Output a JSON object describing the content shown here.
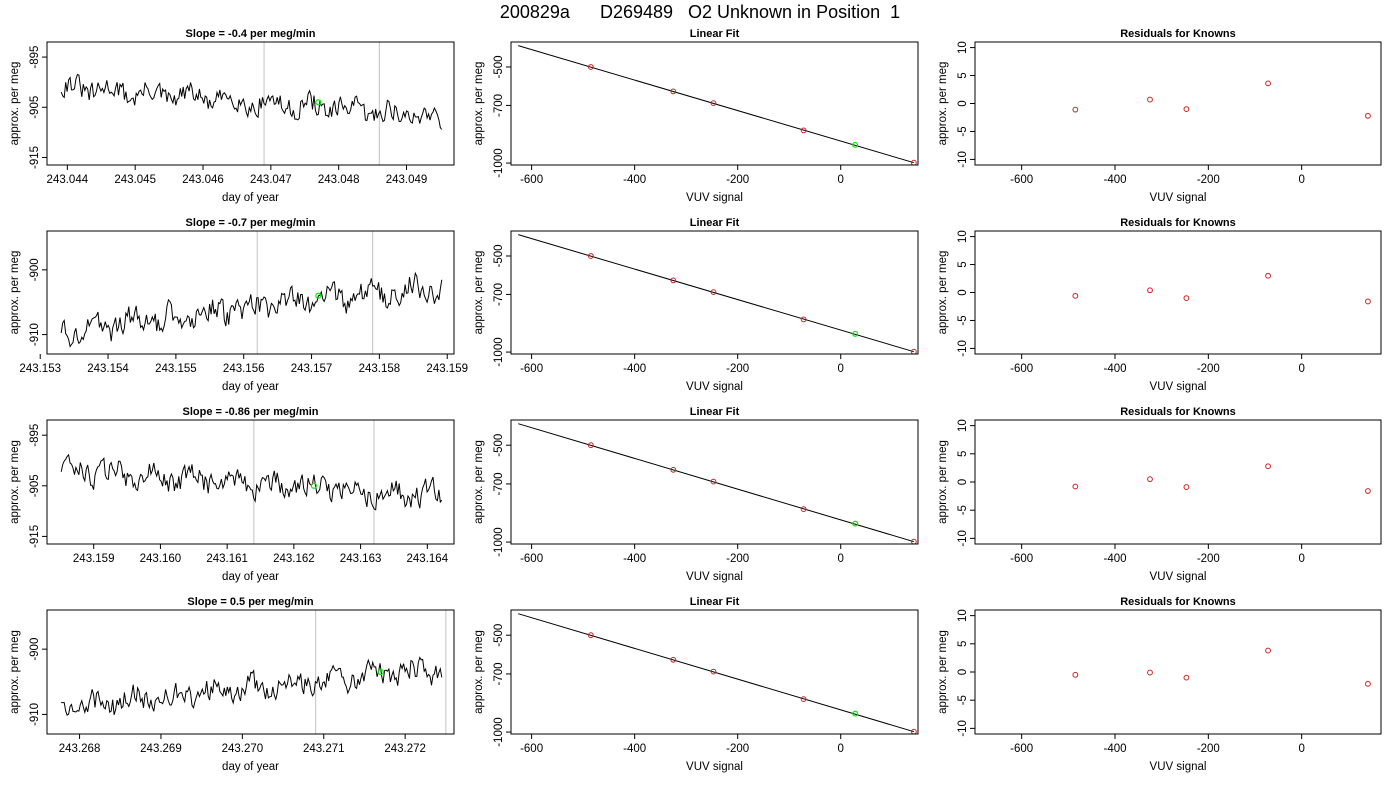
{
  "figure_title": "200829a      D269489   O2 Unknown in Position  1",
  "colors": {
    "trace": "#000000",
    "marker_vline": "#cccccc",
    "unknown_point": "#00ee00",
    "known_point": "#cc2222",
    "frame": "#000000"
  },
  "chart_data": [
    {
      "type": "line",
      "title": "Slope =  -0.4  per meg/min",
      "xlabel": "day of year",
      "ylabel": "approx. per meg",
      "xlim": [
        243.0437,
        243.0497
      ],
      "ylim": [
        -916.5,
        -892
      ],
      "xticks": [
        243.044,
        243.045,
        243.046,
        243.047,
        243.048,
        243.049
      ],
      "xtick_labels": [
        "243.044",
        "243.045",
        "243.046",
        "243.047",
        "243.048",
        "243.049"
      ],
      "yticks": [
        -915,
        -905,
        -895
      ],
      "ytick_labels": [
        "-915",
        "-905",
        "-895"
      ],
      "vlines": [
        243.0469,
        243.0486
      ],
      "highlight": {
        "x": 243.0477,
        "y": -904
      },
      "series": {
        "y_start": -901,
        "y_end": -907,
        "noise": 3.0
      }
    },
    {
      "type": "scatter",
      "title": "Linear Fit",
      "xlabel": "VUV signal",
      "ylabel": "approx. per meg",
      "xlim": [
        -640,
        150
      ],
      "ylim": [
        -1010,
        -370
      ],
      "xticks": [
        -600,
        -400,
        -200,
        0
      ],
      "xtick_labels": [
        "-600",
        "-400",
        "-200",
        "0"
      ],
      "yticks": [
        -1000,
        -700,
        -500
      ],
      "ytick_labels": [
        "-1000",
        "-700",
        "-500"
      ],
      "fit_line": {
        "x": [
          -626,
          142
        ],
        "y": [
          -389,
          -998
        ]
      },
      "known_points": {
        "x": [
          -485,
          -325,
          -247,
          -72,
          142
        ],
        "y": [
          -500,
          -627,
          -688,
          -830,
          -998
        ]
      },
      "unknown_point": {
        "x": 28,
        "y": -905
      }
    },
    {
      "type": "scatter",
      "title": "Residuals for Knowns",
      "xlabel": "VUV signal",
      "ylabel": "approx. per meg",
      "xlim": [
        -700,
        170
      ],
      "ylim": [
        -11,
        11
      ],
      "xticks": [
        -600,
        -400,
        -200,
        0
      ],
      "xtick_labels": [
        "-600",
        "-400",
        "-200",
        "0"
      ],
      "yticks": [
        -10,
        -5,
        0,
        5,
        10
      ],
      "ytick_labels": [
        "-10",
        "-5",
        "0",
        "5",
        "10"
      ],
      "known_points": {
        "x": [
          -485,
          -325,
          -247,
          -72,
          142
        ],
        "y": [
          -1.1,
          0.7,
          -1.0,
          3.6,
          -2.2
        ]
      }
    },
    {
      "type": "line",
      "title": "Slope =  -0.7  per meg/min",
      "xlabel": "day of year",
      "ylabel": "approx. per meg",
      "xlim": [
        243.1531,
        243.1591
      ],
      "ylim": [
        -913,
        -894
      ],
      "xticks": [
        243.153,
        243.154,
        243.155,
        243.156,
        243.157,
        243.158,
        243.159
      ],
      "xtick_labels": [
        "243.153",
        "243.154",
        "243.155",
        "243.156",
        "243.157",
        "243.158",
        "243.159"
      ],
      "yticks": [
        -910,
        -900
      ],
      "ytick_labels": [
        "-910",
        "-900"
      ],
      "vlines": [
        243.1562,
        243.1579
      ],
      "highlight": {
        "x": 243.1571,
        "y": -904
      },
      "series": {
        "y_start": -909.5,
        "y_end": -902.5,
        "noise": 2.6
      }
    },
    {
      "type": "scatter",
      "title": "Linear Fit",
      "xlabel": "VUV signal",
      "ylabel": "approx. per meg",
      "xlim": [
        -640,
        150
      ],
      "ylim": [
        -1010,
        -370
      ],
      "xticks": [
        -600,
        -400,
        -200,
        0
      ],
      "xtick_labels": [
        "-600",
        "-400",
        "-200",
        "0"
      ],
      "yticks": [
        -1000,
        -700,
        -500
      ],
      "ytick_labels": [
        "-1000",
        "-700",
        "-500"
      ],
      "fit_line": {
        "x": [
          -626,
          142
        ],
        "y": [
          -389,
          -998
        ]
      },
      "known_points": {
        "x": [
          -485,
          -325,
          -247,
          -72,
          142
        ],
        "y": [
          -500,
          -627,
          -688,
          -830,
          -998
        ]
      },
      "unknown_point": {
        "x": 28,
        "y": -905
      }
    },
    {
      "type": "scatter",
      "title": "Residuals for Knowns",
      "xlabel": "VUV signal",
      "ylabel": "approx. per meg",
      "xlim": [
        -700,
        170
      ],
      "ylim": [
        -11,
        11
      ],
      "xticks": [
        -600,
        -400,
        -200,
        0
      ],
      "xtick_labels": [
        "-600",
        "-400",
        "-200",
        "0"
      ],
      "yticks": [
        -10,
        -5,
        0,
        5,
        10
      ],
      "ytick_labels": [
        "-10",
        "-5",
        "0",
        "5",
        "10"
      ],
      "known_points": {
        "x": [
          -485,
          -325,
          -247,
          -72,
          142
        ],
        "y": [
          -0.6,
          0.4,
          -1.0,
          3.0,
          -1.6
        ]
      }
    },
    {
      "type": "line",
      "title": "Slope =  -0.86  per meg/min",
      "xlabel": "day of year",
      "ylabel": "approx. per meg",
      "xlim": [
        243.1583,
        243.1644
      ],
      "ylim": [
        -916.5,
        -892
      ],
      "xticks": [
        243.159,
        243.16,
        243.161,
        243.162,
        243.163,
        243.164
      ],
      "xtick_labels": [
        "243.159",
        "243.160",
        "243.161",
        "243.162",
        "243.163",
        "243.164"
      ],
      "yticks": [
        -915,
        -905,
        -895
      ],
      "ytick_labels": [
        "-915",
        "-905",
        "-895"
      ],
      "vlines": [
        243.1614,
        243.1632
      ],
      "highlight": {
        "x": 243.1623,
        "y": -905
      },
      "series": {
        "y_start": -902,
        "y_end": -907,
        "noise": 3.2
      }
    },
    {
      "type": "scatter",
      "title": "Linear Fit",
      "xlabel": "VUV signal",
      "ylabel": "approx. per meg",
      "xlim": [
        -640,
        150
      ],
      "ylim": [
        -1010,
        -370
      ],
      "xticks": [
        -600,
        -400,
        -200,
        0
      ],
      "xtick_labels": [
        "-600",
        "-400",
        "-200",
        "0"
      ],
      "yticks": [
        -1000,
        -700,
        -500
      ],
      "ytick_labels": [
        "-1000",
        "-700",
        "-500"
      ],
      "fit_line": {
        "x": [
          -626,
          142
        ],
        "y": [
          -389,
          -998
        ]
      },
      "known_points": {
        "x": [
          -485,
          -325,
          -247,
          -72,
          142
        ],
        "y": [
          -500,
          -627,
          -688,
          -830,
          -998
        ]
      },
      "unknown_point": {
        "x": 28,
        "y": -905
      }
    },
    {
      "type": "scatter",
      "title": "Residuals for Knowns",
      "xlabel": "VUV signal",
      "ylabel": "approx. per meg",
      "xlim": [
        -700,
        170
      ],
      "ylim": [
        -11,
        11
      ],
      "xticks": [
        -600,
        -400,
        -200,
        0
      ],
      "xtick_labels": [
        "-600",
        "-400",
        "-200",
        "0"
      ],
      "yticks": [
        -10,
        -5,
        0,
        5,
        10
      ],
      "ytick_labels": [
        "-10",
        "-5",
        "0",
        "5",
        "10"
      ],
      "known_points": {
        "x": [
          -485,
          -325,
          -247,
          -72,
          142
        ],
        "y": [
          -0.8,
          0.5,
          -0.9,
          2.8,
          -1.6
        ]
      }
    },
    {
      "type": "line",
      "title": "Slope =  0.5  per meg/min",
      "xlabel": "day of year",
      "ylabel": "approx. per meg",
      "xlim": [
        243.2676,
        243.2726
      ],
      "ylim": [
        -913,
        -894
      ],
      "xticks": [
        243.268,
        243.269,
        243.27,
        243.271,
        243.272
      ],
      "xtick_labels": [
        "243.268",
        "243.269",
        "243.270",
        "243.271",
        "243.272"
      ],
      "yticks": [
        -910,
        -900
      ],
      "ytick_labels": [
        "-910",
        "-900"
      ],
      "vlines": [
        243.2709,
        243.2725
      ],
      "highlight": {
        "x": 243.2717,
        "y": -903.5
      },
      "series": {
        "y_start": -909,
        "y_end": -903,
        "noise": 2.4
      }
    },
    {
      "type": "scatter",
      "title": "Linear Fit",
      "xlabel": "VUV signal",
      "ylabel": "approx. per meg",
      "xlim": [
        -640,
        150
      ],
      "ylim": [
        -1010,
        -370
      ],
      "xticks": [
        -600,
        -400,
        -200,
        0
      ],
      "xtick_labels": [
        "-600",
        "-400",
        "-200",
        "0"
      ],
      "yticks": [
        -1000,
        -700,
        -500
      ],
      "ytick_labels": [
        "-1000",
        "-700",
        "-500"
      ],
      "fit_line": {
        "x": [
          -626,
          142
        ],
        "y": [
          -389,
          -998
        ]
      },
      "known_points": {
        "x": [
          -485,
          -325,
          -247,
          -72,
          142
        ],
        "y": [
          -500,
          -627,
          -688,
          -830,
          -998
        ]
      },
      "unknown_point": {
        "x": 28,
        "y": -905
      }
    },
    {
      "type": "scatter",
      "title": "Residuals for Knowns",
      "xlabel": "VUV signal",
      "ylabel": "approx. per meg",
      "xlim": [
        -700,
        170
      ],
      "ylim": [
        -11,
        11
      ],
      "xticks": [
        -600,
        -400,
        -200,
        0
      ],
      "xtick_labels": [
        "-600",
        "-400",
        "-200",
        "0"
      ],
      "yticks": [
        -10,
        -5,
        0,
        5,
        10
      ],
      "ytick_labels": [
        "-10",
        "-5",
        "0",
        "5",
        "10"
      ],
      "known_points": {
        "x": [
          -485,
          -325,
          -247,
          -72,
          142
        ],
        "y": [
          -0.5,
          -0.1,
          -1.0,
          3.8,
          -2.1
        ]
      }
    }
  ]
}
